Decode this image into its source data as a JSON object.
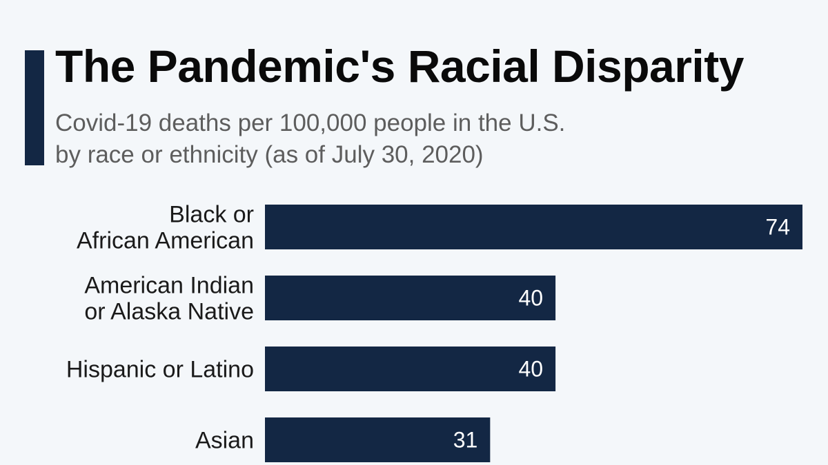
{
  "colors": {
    "accent": "#132744",
    "bar": "#132744",
    "background": "#f4f7fa",
    "title": "#0a0a0a",
    "subtitle": "#5d5d5d"
  },
  "header": {
    "title": "The Pandemic's Racial Disparity",
    "subtitle_line1": "Covid-19 deaths per 100,000 people in the U.S.",
    "subtitle_line2": "by race or ethnicity (as of July 30, 2020)"
  },
  "chart_data": {
    "type": "bar",
    "orientation": "horizontal",
    "title": "The Pandemic's Racial Disparity",
    "subtitle": "Covid-19 deaths per 100,000 people in the U.S. by race or ethnicity (as of July 30, 2020)",
    "categories": [
      [
        "Black or",
        "African American"
      ],
      [
        "American Indian",
        "or Alaska Native"
      ],
      [
        "Hispanic or Latino"
      ],
      [
        "Asian"
      ]
    ],
    "values": [
      74,
      40,
      40,
      31
    ],
    "data_labels": [
      "74",
      "40",
      "40",
      "31"
    ],
    "xlim": [
      0,
      74
    ],
    "grid": false,
    "legend": "none"
  }
}
